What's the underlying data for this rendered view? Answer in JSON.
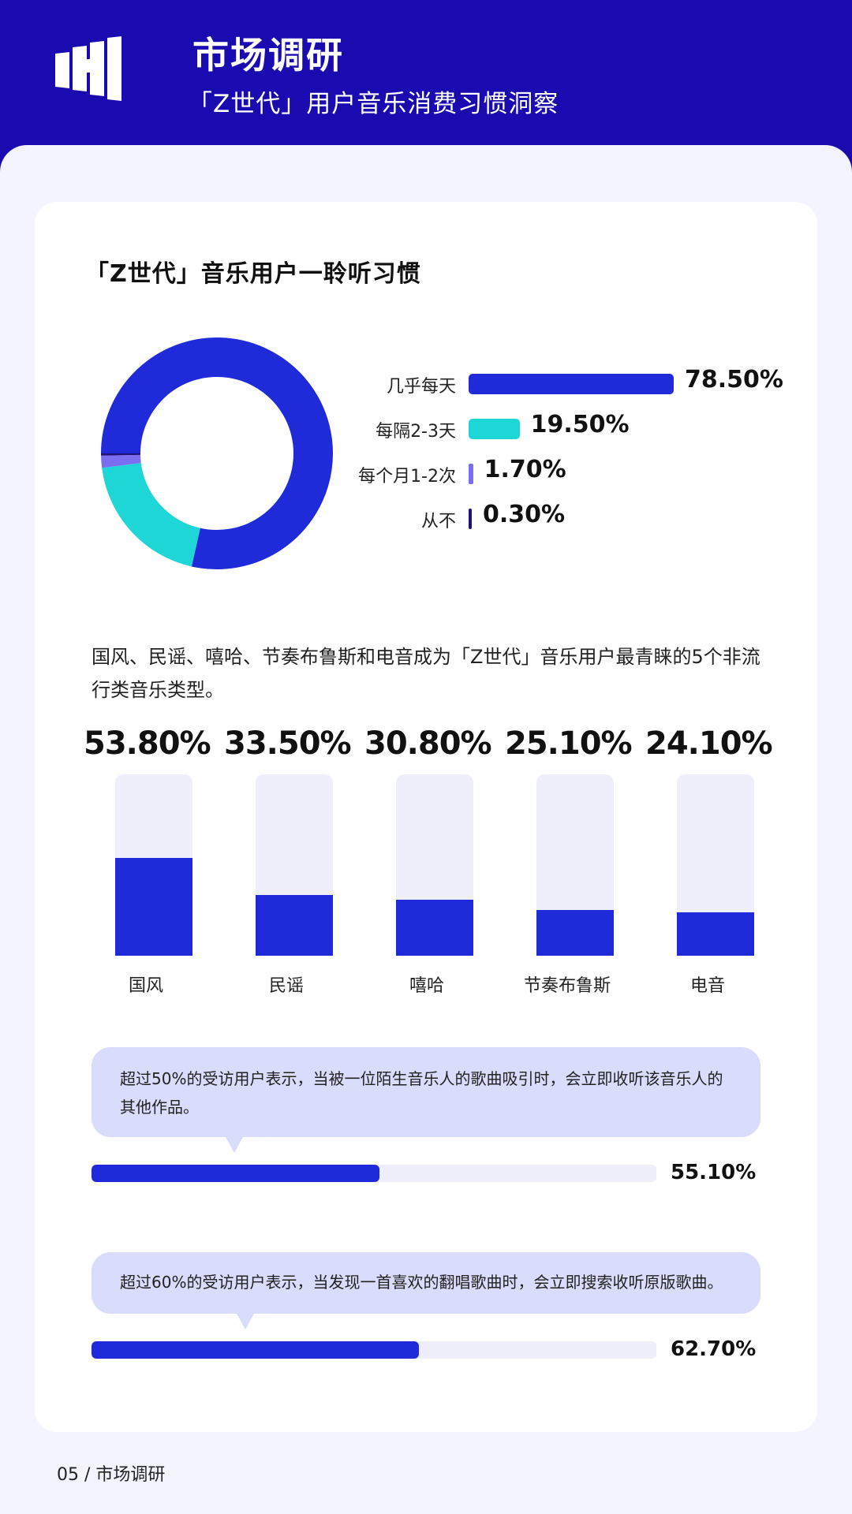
{
  "header": {
    "title": "市场调研",
    "subtitle": "「Z世代」用户音乐消费习惯洞察"
  },
  "section": {
    "title": "「Z世代」音乐用户一聆听习惯"
  },
  "description": "国风、民谣、嘻哈、节奏布鲁斯和电音成为「Z世代」音乐用户最青睐的5个非流行类音乐类型。",
  "insights": [
    {
      "text": "超过50%的受访用户表示，当被一位陌生音乐人的歌曲吸引时，会立即收听该音乐人的其他作品。",
      "value": 55.1,
      "label": "55.10%"
    },
    {
      "text": "超过60%的受访用户表示，当发现一首喜欢的翻唱歌曲时，会立即搜索收听原版歌曲。",
      "value": 62.7,
      "label": "62.70%"
    }
  ],
  "footer": {
    "text": "05  /  市场调研"
  },
  "colors": {
    "brand": "#1a0bb0",
    "primary": "#1f2ad9",
    "teal": "#1ed6d6",
    "purple": "#7b6ef0",
    "dark": "#22107a",
    "track": "#eeeffa"
  },
  "chart_data": [
    {
      "type": "pie",
      "variant": "donut-with-bars",
      "categories": [
        "几乎每天",
        "每隔2-3天",
        "每个月1-2次",
        "从不"
      ],
      "values": [
        78.5,
        19.5,
        1.7,
        0.3
      ],
      "labels": [
        "78.50%",
        "19.50%",
        "1.70%",
        "0.30%"
      ],
      "colors": [
        "#1f2ad9",
        "#1ed6d6",
        "#7b6ef0",
        "#22107a"
      ]
    },
    {
      "type": "bar",
      "categories": [
        "国风",
        "民谣",
        "嘻哈",
        "节奏布鲁斯",
        "电音"
      ],
      "values": [
        53.8,
        33.5,
        30.8,
        25.1,
        24.1
      ],
      "labels": [
        "53.80%",
        "33.50%",
        "30.80%",
        "25.10%",
        "24.10%"
      ],
      "ylim": [
        0,
        100
      ]
    }
  ]
}
